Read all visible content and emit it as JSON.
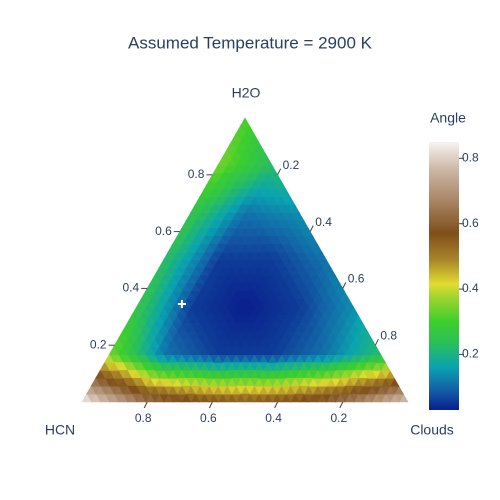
{
  "chart_data": {
    "type": "ternary_contour",
    "title": "Assumed Temperature = 2900 K",
    "a_title": "H2O",
    "b_title": "HCN",
    "c_title": "Clouds",
    "aticks": [
      0.2,
      0.4,
      0.6,
      0.8
    ],
    "bticks": [
      0.2,
      0.4,
      0.6,
      0.8
    ],
    "cticks": [
      0.2,
      0.4,
      0.6,
      0.8
    ],
    "z": [
      [
        0.8,
        0.674,
        0.591,
        0.563,
        0.591,
        0.674,
        0.85
      ],
      [
        0.224,
        0.113,
        0.058,
        0.058,
        0.113,
        0.344
      ],
      [
        0.141,
        0.058,
        0.03,
        0.058,
        0.261
      ],
      [
        0.113,
        0.058,
        0.058,
        0.233
      ],
      [
        0.141,
        0.113,
        0.261
      ],
      [
        0.224,
        0.344
      ],
      [
        0.31
      ]
    ],
    "colorbar_title": "Angle",
    "zlim": [
      0.03,
      0.85
    ],
    "zticks": [
      0.2,
      0.4,
      0.6,
      0.8
    ],
    "colorscale": [
      [
        0,
        "#0a1f8c"
      ],
      [
        0.08,
        "#1463a8"
      ],
      [
        0.16,
        "#0aa3b0"
      ],
      [
        0.25,
        "#2cbf5a"
      ],
      [
        0.33,
        "#3dcf2c"
      ],
      [
        0.42,
        "#9fd42e"
      ],
      [
        0.47,
        "#e3dc30"
      ],
      [
        0.56,
        "#a9852a"
      ],
      [
        0.66,
        "#7e4f1a"
      ],
      [
        0.78,
        "#a88565"
      ],
      [
        0.9,
        "#cdb8a8"
      ],
      [
        1,
        "#f7f3f1"
      ]
    ],
    "marker": {
      "a": 0.345,
      "b": 0.521,
      "c": 0.134,
      "color": "#ffffff"
    }
  }
}
